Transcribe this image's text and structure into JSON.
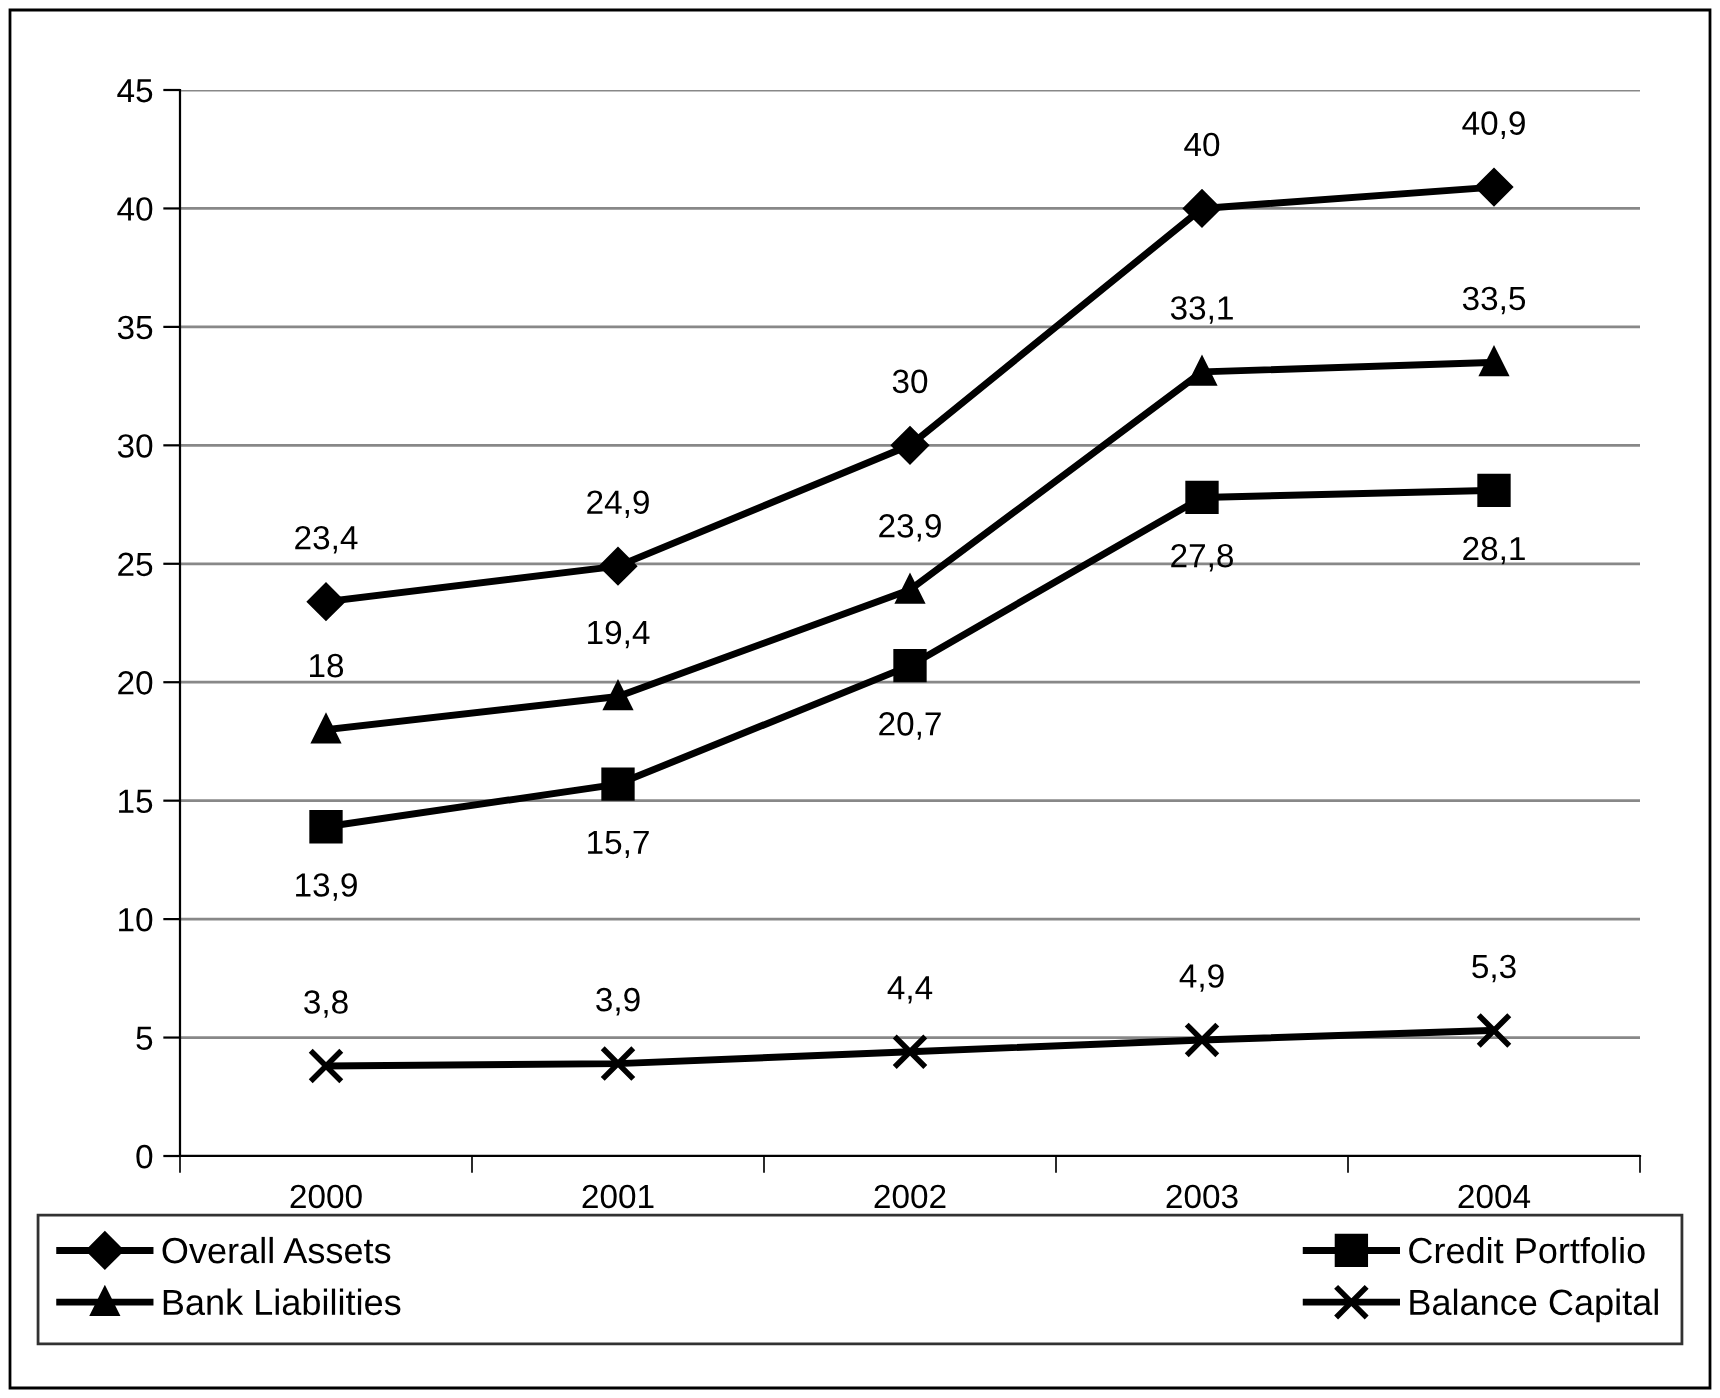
{
  "chart_data": {
    "type": "line",
    "categories": [
      "2000",
      "2001",
      "2002",
      "2003",
      "2004"
    ],
    "series": [
      {
        "name": "Overall Assets",
        "color": "#000000",
        "marker": "diamond",
        "values": [
          23.4,
          24.9,
          30,
          40,
          40.9
        ],
        "value_labels": [
          "23,4",
          "24,9",
          "30",
          "40",
          "40,9"
        ]
      },
      {
        "name": "Credit Portfolio",
        "color": "#000000",
        "marker": "square",
        "values": [
          13.9,
          15.7,
          20.7,
          27.8,
          28.1
        ],
        "value_labels": [
          "13,9",
          "15,7",
          "20,7",
          "27,8",
          "28,1"
        ]
      },
      {
        "name": "Bank Liabilities",
        "color": "#000000",
        "marker": "triangle",
        "values": [
          18,
          19.4,
          23.9,
          33.1,
          33.5
        ],
        "value_labels": [
          "18",
          "19,4",
          "23,9",
          "33,1",
          "33,5"
        ]
      },
      {
        "name": "Balance Capital",
        "color": "#000000",
        "marker": "cross",
        "values": [
          3.8,
          3.9,
          4.4,
          4.9,
          5.3
        ],
        "value_labels": [
          "3,8",
          "3,9",
          "4,4",
          "4,9",
          "5,3"
        ]
      }
    ],
    "ylim": [
      0,
      45
    ],
    "yticks": [
      0,
      5,
      10,
      15,
      20,
      25,
      30,
      35,
      40,
      45
    ],
    "grid": "y",
    "legend": "bottom",
    "line_style": "solid"
  }
}
